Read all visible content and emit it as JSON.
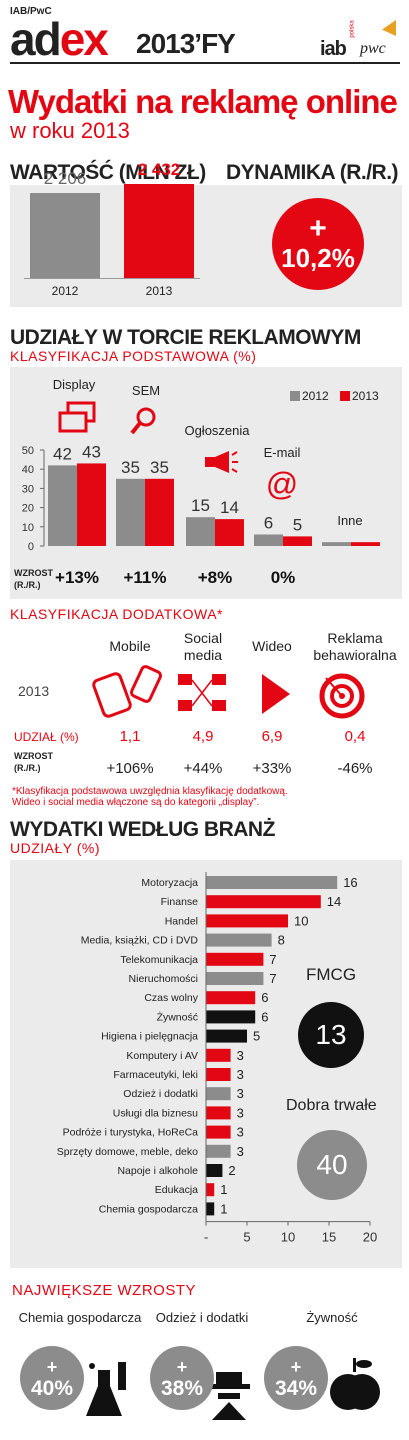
{
  "header": {
    "source": "IAB/PwC",
    "logo_a": "ad",
    "logo_b": "ex",
    "year": "2013’FY",
    "iab": "iab",
    "iab_sub": "polska",
    "pwc": "pwc"
  },
  "title": "Wydatki na reklamę online",
  "subtitle": "w roku 2013",
  "value_section": {
    "title": "WARTOŚĆ (MLN ZŁ)",
    "bars": [
      {
        "year": "2012",
        "value": 2206,
        "label": "2 206"
      },
      {
        "year": "2013",
        "value": 2432,
        "label": "2 432"
      }
    ]
  },
  "dynamics": {
    "title": "DYNAMIKA (R./R.)",
    "sign": "+",
    "value": "10,2%"
  },
  "shares": {
    "title": "UDZIAŁY W TORCIE REKLAMOWYM",
    "subtitle": "KLASYFIKACJA PODSTAWOWA (%)",
    "legend": [
      "2012",
      "2013"
    ],
    "growth_label_1": "WZROST",
    "growth_label_2": "(R./R.)"
  },
  "classifications": {
    "title": "KLASYFIKACJA DODATKOWA*",
    "year": "2013",
    "share_label": "UDZIAŁ (%)",
    "growth_label_1": "WZROST",
    "growth_label_2": "(R./R.)",
    "items": [
      {
        "name1": "Mobile",
        "name2": "",
        "share": "1,1",
        "growth": "+106%"
      },
      {
        "name1": "Social",
        "name2": "media",
        "share": "4,9",
        "growth": "+44%"
      },
      {
        "name1": "Wideo",
        "name2": "",
        "share": "6,9",
        "growth": "+33%"
      },
      {
        "name1": "Reklama",
        "name2": "behawioralna",
        "share": "0,4",
        "growth": "-46%"
      }
    ],
    "note1": "*Klasyfikacja podstawowa uwzględnia klasyfikację dodatkową.",
    "note2": "Wideo i social media włączone są do kategorii „display”."
  },
  "industries": {
    "title": "WYDATKI WEDŁUG BRANŻ",
    "subtitle": "UDZIAŁY (%)",
    "fmcg_label": "FMCG",
    "fmcg_value": "13",
    "durable_label": "Dobra trwałe",
    "durable_value": "40"
  },
  "top_growth": {
    "title": "NAJWIĘKSZE WZROSTY",
    "items": [
      {
        "name": "Chemia gospodarcza",
        "sign": "+",
        "value": "40%"
      },
      {
        "name": "Odzież i dodatki",
        "sign": "+",
        "value": "38%"
      },
      {
        "name": "Żywność",
        "sign": "+",
        "value": "34%"
      }
    ]
  },
  "chart_data": [
    {
      "type": "bar",
      "categories": [
        "Display",
        "SEM",
        "Ogłoszenia",
        "E-mail",
        "Inne"
      ],
      "series": [
        {
          "name": "2012",
          "values": [
            42,
            35,
            15,
            6,
            2
          ]
        },
        {
          "name": "2013",
          "values": [
            43,
            35,
            14,
            5,
            2
          ]
        }
      ],
      "data_labels": [
        [
          "42",
          "43"
        ],
        [
          "35",
          "35"
        ],
        [
          "15",
          "14"
        ],
        [
          "6",
          "5"
        ],
        [
          "",
          ""
        ]
      ],
      "growth": [
        "+13%",
        "+11%",
        "+8%",
        "0%",
        ""
      ],
      "ylim": [
        0,
        50
      ],
      "yticks": [
        "0",
        "10",
        "20",
        "30",
        "40",
        "50"
      ],
      "colors": [
        "#8c8c8c",
        "#e30613"
      ]
    },
    {
      "type": "bar",
      "orientation": "horizontal",
      "categories": [
        "Motoryzacja",
        "Finanse",
        "Handel",
        "Media, książki, CD i DVD",
        "Telekomunikacja",
        "Nieruchomości",
        "Czas wolny",
        "Żywność",
        "Higiena i pielęgnacja",
        "Komputery i AV",
        "Farmaceutyki, leki",
        "Odzież i dodatki",
        "Usługi dla biznesu",
        "Podróże i turystyka, HoReCa",
        "Sprzęty domowe, meble, deko",
        "Napoje i alkohole",
        "Edukacja",
        "Chemia gospodarcza"
      ],
      "values": [
        16,
        14,
        10,
        8,
        7,
        7,
        6,
        6,
        5,
        3,
        3,
        3,
        3,
        3,
        3,
        2,
        1,
        1
      ],
      "colors": [
        "#8c8c8c",
        "#e30613",
        "#e30613",
        "#8c8c8c",
        "#e30613",
        "#8c8c8c",
        "#e30613",
        "#111111",
        "#111111",
        "#e30613",
        "#e30613",
        "#8c8c8c",
        "#e30613",
        "#e30613",
        "#8c8c8c",
        "#111111",
        "#e30613",
        "#111111"
      ],
      "xlim": [
        0,
        20
      ],
      "xticks": [
        "-",
        "5",
        "10",
        "15",
        "20"
      ]
    }
  ]
}
